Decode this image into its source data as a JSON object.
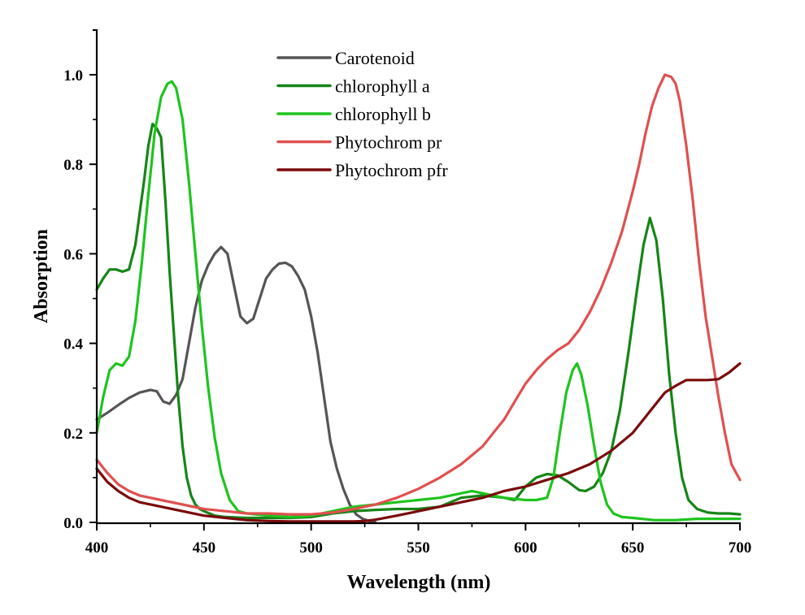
{
  "chart_data": {
    "type": "line",
    "title": "",
    "xlabel": "Wavelength (nm)",
    "ylabel": "Absorption",
    "xlim": [
      400,
      700
    ],
    "ylim": [
      0.0,
      1.1
    ],
    "xticks": [
      "400",
      "450",
      "500",
      "550",
      "600",
      "650",
      "700"
    ],
    "yticks": [
      "0.0",
      "0.2",
      "0.4",
      "0.6",
      "0.8",
      "1.0"
    ],
    "grid": false,
    "legend_position": "top-center",
    "series": [
      {
        "name": "Carotenoid",
        "color": "#555555",
        "x": [
          400,
          405,
          410,
          415,
          420,
          425,
          428,
          431,
          434,
          437,
          440,
          443,
          446,
          449,
          452,
          455,
          458,
          461,
          464,
          467,
          470,
          473,
          476,
          479,
          482,
          485,
          488,
          491,
          494,
          497,
          500,
          503,
          506,
          509,
          512,
          515,
          518,
          521,
          524,
          527,
          530
        ],
        "y": [
          0.23,
          0.245,
          0.262,
          0.278,
          0.29,
          0.296,
          0.293,
          0.27,
          0.265,
          0.285,
          0.32,
          0.4,
          0.48,
          0.54,
          0.575,
          0.6,
          0.615,
          0.6,
          0.53,
          0.46,
          0.445,
          0.455,
          0.5,
          0.545,
          0.565,
          0.578,
          0.58,
          0.572,
          0.55,
          0.52,
          0.46,
          0.38,
          0.28,
          0.18,
          0.12,
          0.075,
          0.04,
          0.018,
          0.008,
          0.003,
          0.0
        ]
      },
      {
        "name": "chlorophyll a",
        "color": "#168516",
        "x": [
          400,
          403,
          406,
          409,
          412,
          415,
          418,
          420,
          422,
          424,
          426,
          428,
          430,
          432,
          434,
          436,
          438,
          440,
          442,
          444,
          446,
          448,
          450,
          455,
          460,
          470,
          480,
          490,
          500,
          510,
          520,
          530,
          540,
          550,
          560,
          570,
          580,
          590,
          595,
          600,
          605,
          610,
          615,
          620,
          625,
          628,
          632,
          636,
          640,
          644,
          648,
          652,
          655,
          658,
          661,
          664,
          667,
          670,
          673,
          676,
          680,
          685,
          690,
          695,
          700
        ],
        "y": [
          0.52,
          0.545,
          0.565,
          0.565,
          0.56,
          0.565,
          0.62,
          0.69,
          0.76,
          0.84,
          0.89,
          0.88,
          0.86,
          0.72,
          0.56,
          0.42,
          0.28,
          0.17,
          0.1,
          0.06,
          0.04,
          0.03,
          0.025,
          0.015,
          0.012,
          0.01,
          0.01,
          0.01,
          0.012,
          0.02,
          0.025,
          0.028,
          0.03,
          0.03,
          0.035,
          0.055,
          0.06,
          0.055,
          0.05,
          0.08,
          0.1,
          0.108,
          0.105,
          0.09,
          0.072,
          0.07,
          0.08,
          0.11,
          0.16,
          0.25,
          0.38,
          0.52,
          0.62,
          0.68,
          0.63,
          0.5,
          0.33,
          0.2,
          0.1,
          0.05,
          0.03,
          0.022,
          0.02,
          0.02,
          0.018
        ]
      },
      {
        "name": "chlorophyll b",
        "color": "#1ec41e",
        "x": [
          400,
          403,
          406,
          409,
          412,
          415,
          418,
          421,
          424,
          427,
          430,
          433,
          435,
          437,
          440,
          443,
          446,
          449,
          452,
          455,
          458,
          462,
          466,
          470,
          480,
          490,
          500,
          510,
          520,
          530,
          540,
          550,
          560,
          570,
          575,
          580,
          590,
          600,
          605,
          610,
          613,
          616,
          619,
          622,
          624,
          626,
          629,
          632,
          635,
          638,
          641,
          645,
          650,
          660,
          670,
          680,
          690,
          700
        ],
        "y": [
          0.2,
          0.28,
          0.34,
          0.355,
          0.35,
          0.37,
          0.45,
          0.58,
          0.73,
          0.87,
          0.95,
          0.98,
          0.985,
          0.97,
          0.9,
          0.76,
          0.6,
          0.44,
          0.3,
          0.19,
          0.11,
          0.05,
          0.025,
          0.02,
          0.015,
          0.012,
          0.015,
          0.025,
          0.035,
          0.04,
          0.045,
          0.05,
          0.055,
          0.065,
          0.07,
          0.065,
          0.055,
          0.05,
          0.05,
          0.055,
          0.1,
          0.2,
          0.29,
          0.34,
          0.355,
          0.33,
          0.26,
          0.17,
          0.09,
          0.04,
          0.02,
          0.012,
          0.01,
          0.005,
          0.005,
          0.008,
          0.008,
          0.008
        ]
      },
      {
        "name": "Phytochrom pr",
        "color": "#e05050",
        "x": [
          400,
          405,
          410,
          415,
          420,
          430,
          440,
          450,
          460,
          470,
          480,
          490,
          500,
          510,
          520,
          530,
          540,
          550,
          560,
          570,
          575,
          580,
          585,
          590,
          595,
          600,
          605,
          610,
          615,
          620,
          625,
          630,
          635,
          640,
          645,
          650,
          653,
          656,
          659,
          662,
          665,
          668,
          670,
          672,
          675,
          678,
          681,
          684,
          687,
          690,
          693,
          696,
          700
        ],
        "y": [
          0.14,
          0.11,
          0.085,
          0.07,
          0.06,
          0.05,
          0.04,
          0.03,
          0.025,
          0.02,
          0.02,
          0.018,
          0.018,
          0.022,
          0.03,
          0.04,
          0.055,
          0.075,
          0.1,
          0.13,
          0.15,
          0.17,
          0.2,
          0.23,
          0.27,
          0.31,
          0.34,
          0.365,
          0.385,
          0.4,
          0.43,
          0.47,
          0.52,
          0.58,
          0.65,
          0.74,
          0.8,
          0.87,
          0.93,
          0.97,
          1.0,
          0.995,
          0.98,
          0.94,
          0.84,
          0.72,
          0.58,
          0.46,
          0.37,
          0.28,
          0.2,
          0.13,
          0.095
        ]
      },
      {
        "name": "Phytochrom pfr",
        "color": "#7a0a0a",
        "x": [
          400,
          405,
          410,
          415,
          420,
          430,
          440,
          450,
          460,
          470,
          480,
          490,
          500,
          510,
          520,
          525,
          530,
          540,
          550,
          560,
          570,
          580,
          590,
          600,
          610,
          620,
          630,
          640,
          645,
          650,
          655,
          660,
          665,
          670,
          675,
          680,
          685,
          690,
          695,
          700
        ],
        "y": [
          0.12,
          0.09,
          0.07,
          0.055,
          0.045,
          0.035,
          0.025,
          0.015,
          0.01,
          0.005,
          0.003,
          0.002,
          0.002,
          0.002,
          0.002,
          0.003,
          0.006,
          0.015,
          0.025,
          0.035,
          0.045,
          0.055,
          0.07,
          0.08,
          0.095,
          0.11,
          0.13,
          0.16,
          0.18,
          0.2,
          0.23,
          0.26,
          0.29,
          0.305,
          0.318,
          0.318,
          0.318,
          0.32,
          0.335,
          0.355
        ]
      }
    ]
  }
}
